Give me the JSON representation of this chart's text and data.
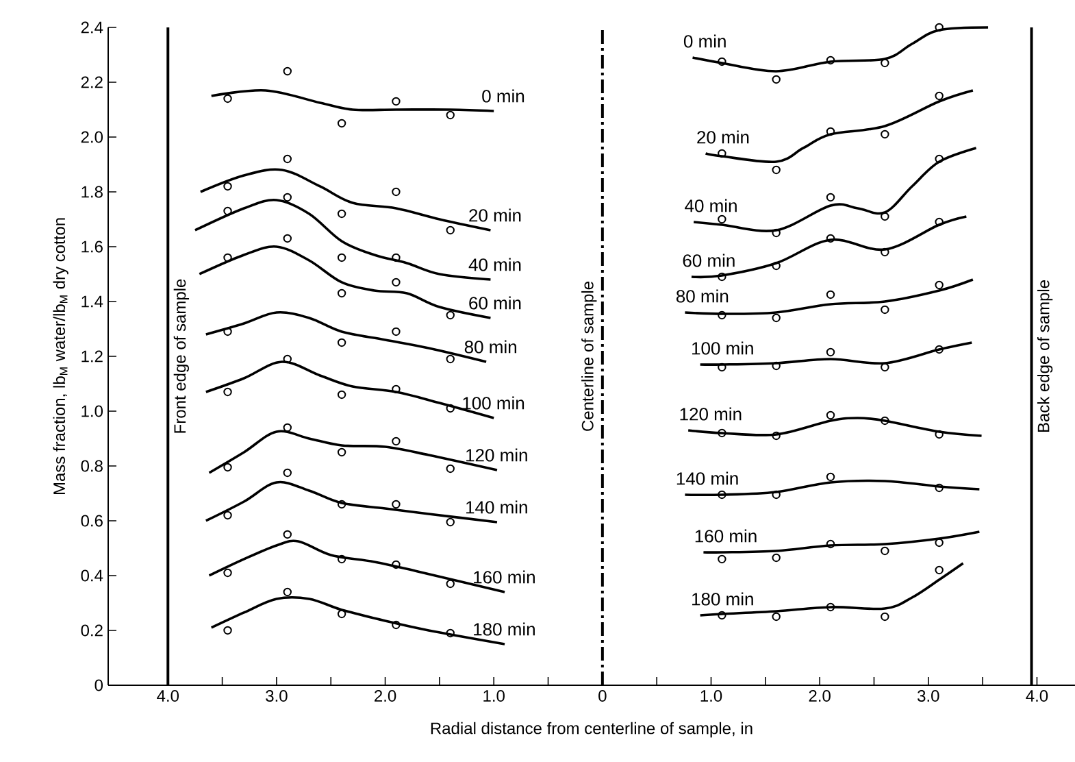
{
  "chart_data": {
    "type": "line",
    "xlabel": "Radial distance from centerline of sample,   in",
    "ylabel": "Mass fraction,   lb$_{M}$ water/lb$_{M}$ dry cotton",
    "xlim": [
      -4.55,
      4.35
    ],
    "ylim": [
      0,
      2.4
    ],
    "xticks": [
      {
        "value": -4,
        "label": "4.0"
      },
      {
        "value": -3.5,
        "label": null
      },
      {
        "value": -3,
        "label": "3.0"
      },
      {
        "value": -2.5,
        "label": null
      },
      {
        "value": -2,
        "label": "2.0"
      },
      {
        "value": -1.5,
        "label": null
      },
      {
        "value": -1,
        "label": "1.0"
      },
      {
        "value": -0.5,
        "label": null
      },
      0,
      {
        "value": 0.5,
        "label": null
      },
      {
        "value": 1,
        "label": "1.0"
      },
      {
        "value": 1.5,
        "label": null
      },
      {
        "value": 2,
        "label": "2.0"
      },
      {
        "value": 2.5,
        "label": null
      },
      {
        "value": 3,
        "label": "3.0"
      },
      {
        "value": 3.5,
        "label": null
      },
      {
        "value": 4,
        "label": "4.0"
      }
    ],
    "yticks": [
      0,
      {
        "value": 0.2,
        "label": "0.2"
      },
      {
        "value": 0.4,
        "label": "0.4"
      },
      {
        "value": 0.6,
        "label": "0.6"
      },
      {
        "value": 0.8,
        "label": "0.8"
      },
      {
        "value": 1.0,
        "label": "1.0"
      },
      {
        "value": 1.2,
        "label": "1.2"
      },
      {
        "value": 1.4,
        "label": "1.4"
      },
      {
        "value": 1.6,
        "label": "1.6"
      },
      {
        "value": 1.8,
        "label": "1.8"
      },
      {
        "value": 2.0,
        "label": "2.0"
      },
      {
        "value": 2.2,
        "label": "2.2"
      },
      {
        "value": 2.4,
        "label": "2.4"
      }
    ],
    "line_style": "solid",
    "ref_lines": [
      {
        "axis": "x",
        "value": -4,
        "label": "Front edge of sample",
        "line_style": "solid",
        "color": "#000000"
      },
      {
        "axis": "x",
        "value": 0,
        "label": "Centerline of sample",
        "line_style": "dashed",
        "color": "#000000"
      },
      {
        "axis": "x",
        "value": 3.95,
        "label": "Back edge of sample",
        "line_style": "solid",
        "color": "#000000"
      }
    ],
    "series": [
      {
        "name": "0 min",
        "type": "line",
        "color": "#000000",
        "x": [
          -3.6,
          -3.1,
          -2.6,
          -2.3,
          -1.9,
          -1.4,
          -1.0
        ],
        "values": [
          2.15,
          2.17,
          2.125,
          2.1,
          2.1,
          2.1,
          2.095
        ]
      },
      {
        "type": "scatter",
        "marker": "circle",
        "color": "#000000",
        "x": [
          -3.45,
          -2.9,
          -2.4,
          -1.9,
          -1.4
        ],
        "values": [
          2.14,
          2.24,
          2.05,
          2.13,
          2.08
        ]
      },
      {
        "name": "0 min",
        "type": "line",
        "color": "#000000",
        "x": [
          0.83,
          1.1,
          1.6,
          2.1,
          2.6,
          2.85,
          3.1,
          3.55
        ],
        "values": [
          2.29,
          2.27,
          2.24,
          2.275,
          2.285,
          2.34,
          2.39,
          2.4
        ]
      },
      {
        "type": "scatter",
        "marker": "circle",
        "color": "#000000",
        "x": [
          1.1,
          1.6,
          2.1,
          2.6,
          3.1
        ],
        "values": [
          2.275,
          2.21,
          2.28,
          2.27,
          2.4
        ]
      },
      {
        "name": "20 min",
        "type": "line",
        "color": "#000000",
        "x": [
          -3.7,
          -3.3,
          -2.95,
          -2.6,
          -2.3,
          -1.9,
          -1.5,
          -1.03
        ],
        "values": [
          1.8,
          1.86,
          1.88,
          1.82,
          1.76,
          1.74,
          1.7,
          1.66
        ]
      },
      {
        "type": "scatter",
        "marker": "circle",
        "color": "#000000",
        "x": [
          -3.45,
          -2.9,
          -2.4,
          -1.9,
          -1.4
        ],
        "values": [
          1.82,
          1.92,
          1.72,
          1.8,
          1.66
        ]
      },
      {
        "name": "20 min",
        "type": "line",
        "color": "#000000",
        "x": [
          0.95,
          1.1,
          1.6,
          1.85,
          2.1,
          2.6,
          3.1,
          3.41
        ],
        "values": [
          1.94,
          1.93,
          1.91,
          1.96,
          2.01,
          2.04,
          2.13,
          2.17
        ]
      },
      {
        "type": "scatter",
        "marker": "circle",
        "color": "#000000",
        "x": [
          1.1,
          1.6,
          2.1,
          2.6,
          3.1
        ],
        "values": [
          1.94,
          1.88,
          2.02,
          2.01,
          2.15
        ]
      },
      {
        "name": "40 min",
        "type": "line",
        "color": "#000000",
        "x": [
          -3.75,
          -3.3,
          -3.0,
          -2.7,
          -2.4,
          -2.1,
          -1.8,
          -1.5,
          -1.03
        ],
        "values": [
          1.66,
          1.74,
          1.77,
          1.72,
          1.62,
          1.57,
          1.54,
          1.5,
          1.48
        ]
      },
      {
        "type": "scatter",
        "marker": "circle",
        "color": "#000000",
        "x": [
          -3.45,
          -2.9,
          -2.4,
          -1.9
        ],
        "values": [
          1.73,
          1.78,
          1.56,
          1.56
        ]
      },
      {
        "name": "40 min",
        "type": "line",
        "color": "#000000",
        "x": [
          0.84,
          1.1,
          1.6,
          2.1,
          2.35,
          2.6,
          2.85,
          3.1,
          3.44
        ],
        "values": [
          1.69,
          1.68,
          1.66,
          1.75,
          1.74,
          1.725,
          1.82,
          1.91,
          1.96
        ]
      },
      {
        "type": "scatter",
        "marker": "circle",
        "color": "#000000",
        "x": [
          1.1,
          1.6,
          2.1,
          2.6,
          3.1
        ],
        "values": [
          1.7,
          1.65,
          1.78,
          1.71,
          1.92
        ]
      },
      {
        "name": "60 min",
        "type": "line",
        "color": "#000000",
        "x": [
          -3.71,
          -3.3,
          -3.0,
          -2.7,
          -2.4,
          -2.1,
          -1.8,
          -1.5,
          -1.03
        ],
        "values": [
          1.5,
          1.57,
          1.6,
          1.55,
          1.47,
          1.44,
          1.43,
          1.38,
          1.34
        ]
      },
      {
        "type": "scatter",
        "marker": "circle",
        "color": "#000000",
        "x": [
          -3.45,
          -2.9,
          -2.4,
          -1.9,
          -1.4
        ],
        "values": [
          1.56,
          1.63,
          1.43,
          1.47,
          1.35
        ]
      },
      {
        "name": "60 min",
        "type": "line",
        "color": "#000000",
        "x": [
          0.82,
          1.1,
          1.6,
          2.1,
          2.6,
          3.1,
          3.35
        ],
        "values": [
          1.49,
          1.495,
          1.54,
          1.625,
          1.59,
          1.68,
          1.71
        ]
      },
      {
        "type": "scatter",
        "marker": "circle",
        "color": "#000000",
        "x": [
          1.1,
          1.6,
          2.1,
          2.6,
          3.1
        ],
        "values": [
          1.49,
          1.53,
          1.63,
          1.58,
          1.69
        ]
      },
      {
        "name": "80 min",
        "type": "line",
        "color": "#000000",
        "x": [
          -3.65,
          -3.3,
          -3.0,
          -2.7,
          -2.4,
          -2.0,
          -1.6,
          -1.07
        ],
        "values": [
          1.28,
          1.32,
          1.36,
          1.34,
          1.29,
          1.26,
          1.23,
          1.18
        ]
      },
      {
        "type": "scatter",
        "marker": "circle",
        "color": "#000000",
        "x": [
          -3.45,
          -2.4,
          -1.9,
          -1.4
        ],
        "values": [
          1.29,
          1.25,
          1.29,
          1.19
        ]
      },
      {
        "name": "80 min",
        "type": "line",
        "color": "#000000",
        "x": [
          0.76,
          1.1,
          1.6,
          2.1,
          2.6,
          3.1,
          3.41
        ],
        "values": [
          1.36,
          1.355,
          1.36,
          1.39,
          1.4,
          1.44,
          1.48
        ]
      },
      {
        "type": "scatter",
        "marker": "circle",
        "color": "#000000",
        "x": [
          1.1,
          1.6,
          2.1,
          2.6,
          3.1
        ],
        "values": [
          1.35,
          1.34,
          1.425,
          1.37,
          1.46
        ]
      },
      {
        "name": "100 min",
        "type": "line",
        "color": "#000000",
        "x": [
          -3.65,
          -3.3,
          -2.95,
          -2.6,
          -2.3,
          -1.9,
          -1.5,
          -1.0
        ],
        "values": [
          1.07,
          1.12,
          1.18,
          1.13,
          1.09,
          1.07,
          1.03,
          0.975
        ]
      },
      {
        "type": "scatter",
        "marker": "circle",
        "color": "#000000",
        "x": [
          -3.45,
          -2.9,
          -2.4,
          -1.9,
          -1.4
        ],
        "values": [
          1.07,
          1.19,
          1.06,
          1.08,
          1.01
        ]
      },
      {
        "name": "100 min",
        "type": "line",
        "color": "#000000",
        "x": [
          0.9,
          1.1,
          1.6,
          2.1,
          2.6,
          3.1,
          3.4
        ],
        "values": [
          1.17,
          1.17,
          1.175,
          1.19,
          1.175,
          1.225,
          1.25
        ]
      },
      {
        "type": "scatter",
        "marker": "circle",
        "color": "#000000",
        "x": [
          1.1,
          1.6,
          2.1,
          2.6,
          3.1
        ],
        "values": [
          1.16,
          1.165,
          1.215,
          1.16,
          1.225
        ]
      },
      {
        "name": "120 min",
        "type": "line",
        "color": "#000000",
        "x": [
          -3.62,
          -3.3,
          -3.0,
          -2.7,
          -2.4,
          -2.0,
          -1.6,
          -0.97
        ],
        "values": [
          0.775,
          0.85,
          0.925,
          0.9,
          0.875,
          0.87,
          0.84,
          0.785
        ]
      },
      {
        "type": "scatter",
        "marker": "circle",
        "color": "#000000",
        "x": [
          -3.45,
          -2.9,
          -2.4,
          -1.9,
          -1.4
        ],
        "values": [
          0.795,
          0.94,
          0.85,
          0.89,
          0.79
        ]
      },
      {
        "name": "120 min",
        "type": "line",
        "color": "#000000",
        "x": [
          0.79,
          1.1,
          1.6,
          2.1,
          2.35,
          2.6,
          3.1,
          3.49
        ],
        "values": [
          0.93,
          0.92,
          0.915,
          0.965,
          0.975,
          0.965,
          0.925,
          0.91
        ]
      },
      {
        "type": "scatter",
        "marker": "circle",
        "color": "#000000",
        "x": [
          1.1,
          1.6,
          2.1,
          2.6,
          3.1
        ],
        "values": [
          0.92,
          0.91,
          0.985,
          0.965,
          0.915
        ]
      },
      {
        "name": "140 min",
        "type": "line",
        "color": "#000000",
        "x": [
          -3.65,
          -3.3,
          -3.0,
          -2.7,
          -2.4,
          -2.0,
          -1.6,
          -0.97
        ],
        "values": [
          0.6,
          0.67,
          0.74,
          0.71,
          0.665,
          0.645,
          0.625,
          0.595
        ]
      },
      {
        "type": "scatter",
        "marker": "circle",
        "color": "#000000",
        "x": [
          -3.45,
          -2.9,
          -2.4,
          -1.9,
          -1.4
        ],
        "values": [
          0.62,
          0.775,
          0.66,
          0.66,
          0.595
        ]
      },
      {
        "name": "140 min",
        "type": "line",
        "color": "#000000",
        "x": [
          0.76,
          1.1,
          1.6,
          2.1,
          2.6,
          3.1,
          3.47
        ],
        "values": [
          0.695,
          0.695,
          0.705,
          0.74,
          0.745,
          0.725,
          0.715
        ]
      },
      {
        "type": "scatter",
        "marker": "circle",
        "color": "#000000",
        "x": [
          1.1,
          1.6,
          2.1,
          3.1
        ],
        "values": [
          0.695,
          0.695,
          0.76,
          0.72
        ]
      },
      {
        "name": "160 min",
        "type": "line",
        "color": "#000000",
        "x": [
          -3.62,
          -3.3,
          -3.0,
          -2.8,
          -2.5,
          -2.1,
          -1.7,
          -0.9
        ],
        "values": [
          0.4,
          0.46,
          0.51,
          0.525,
          0.475,
          0.45,
          0.415,
          0.34
        ]
      },
      {
        "type": "scatter",
        "marker": "circle",
        "color": "#000000",
        "x": [
          -3.45,
          -2.9,
          -2.4,
          -1.9,
          -1.4
        ],
        "values": [
          0.41,
          0.55,
          0.46,
          0.44,
          0.37
        ]
      },
      {
        "name": "160 min",
        "type": "line",
        "color": "#000000",
        "x": [
          0.93,
          1.1,
          1.6,
          2.1,
          2.6,
          3.1,
          3.47
        ],
        "values": [
          0.485,
          0.485,
          0.49,
          0.51,
          0.515,
          0.535,
          0.56
        ]
      },
      {
        "type": "scatter",
        "marker": "circle",
        "color": "#000000",
        "x": [
          1.1,
          1.6,
          2.1,
          2.6,
          3.1
        ],
        "values": [
          0.46,
          0.465,
          0.515,
          0.49,
          0.52
        ]
      },
      {
        "name": "180 min",
        "type": "line",
        "color": "#000000",
        "x": [
          -3.6,
          -3.3,
          -3.0,
          -2.7,
          -2.4,
          -2.0,
          -1.6,
          -0.9
        ],
        "values": [
          0.21,
          0.265,
          0.315,
          0.315,
          0.275,
          0.235,
          0.2,
          0.15
        ]
      },
      {
        "type": "scatter",
        "marker": "circle",
        "color": "#000000",
        "x": [
          -3.45,
          -2.9,
          -2.4,
          -1.9,
          -1.4
        ],
        "values": [
          0.2,
          0.34,
          0.26,
          0.22,
          0.19
        ]
      },
      {
        "name": "180 min",
        "type": "line",
        "color": "#000000",
        "x": [
          0.9,
          1.1,
          1.6,
          2.1,
          2.6,
          2.85,
          3.1,
          3.32
        ],
        "values": [
          0.255,
          0.26,
          0.27,
          0.285,
          0.28,
          0.32,
          0.385,
          0.445
        ]
      },
      {
        "type": "scatter",
        "marker": "circle",
        "color": "#000000",
        "x": [
          1.1,
          1.6,
          2.1,
          2.6,
          3.1
        ],
        "values": [
          0.255,
          0.25,
          0.285,
          0.25,
          0.42
        ]
      }
    ]
  }
}
